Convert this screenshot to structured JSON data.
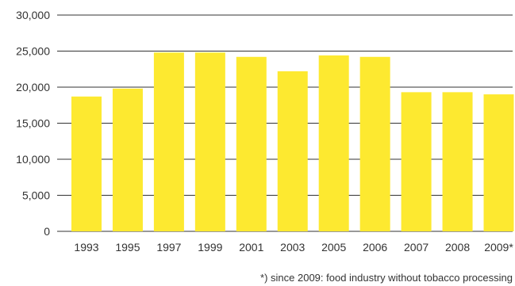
{
  "chart_data": {
    "type": "bar",
    "categories": [
      "1993",
      "1995",
      "1997",
      "1999",
      "2001",
      "2003",
      "2005",
      "2006",
      "2007",
      "2008",
      "2009*"
    ],
    "values": [
      18700,
      19800,
      24800,
      24800,
      24200,
      22200,
      24400,
      24200,
      19300,
      19300,
      19000
    ],
    "yticks": [
      "0",
      "5,000",
      "10,000",
      "15,000",
      "20,000",
      "25,000",
      "30,000"
    ],
    "ylim": [
      0,
      30000
    ],
    "grid": true,
    "bar_color": "#fde930",
    "title": "",
    "xlabel": "",
    "ylabel": "",
    "footnote": "*) since 2009: food industry without tobacco processing"
  }
}
